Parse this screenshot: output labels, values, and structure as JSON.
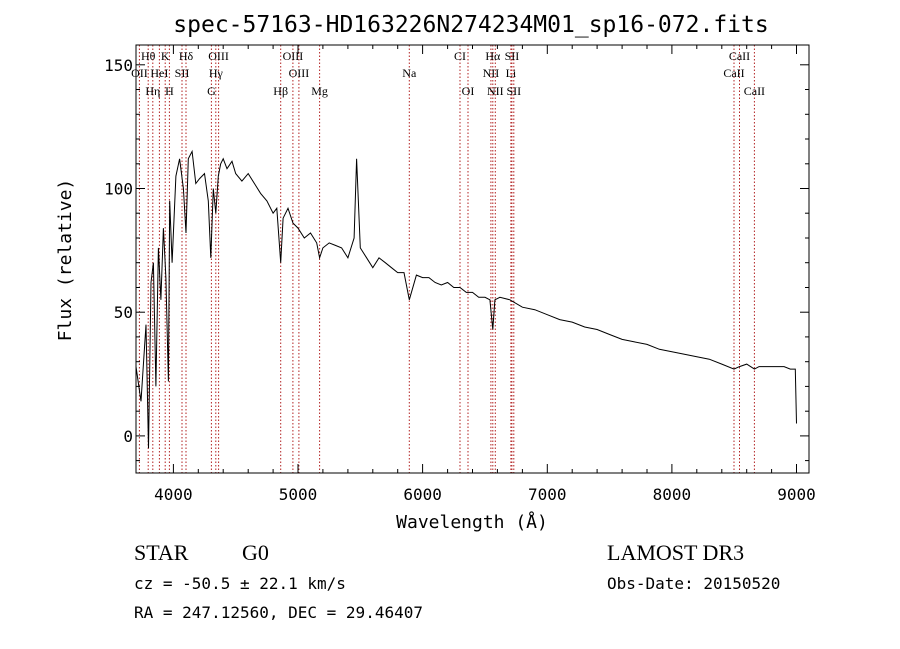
{
  "chart_data": {
    "type": "line",
    "title": "spec-57163-HD163226N274234M01_sp16-072.fits",
    "xlabel": "Wavelength (Å)",
    "ylabel": "Flux (relative)",
    "xlim": [
      3700,
      9100
    ],
    "ylim": [
      -15,
      158
    ],
    "xticks": [
      4000,
      5000,
      6000,
      7000,
      8000,
      9000
    ],
    "yticks": [
      0,
      50,
      100,
      150
    ],
    "xtick_labels": [
      "4000",
      "5000",
      "6000",
      "7000",
      "8000",
      "9000"
    ],
    "ytick_labels": [
      "0",
      "50",
      "100",
      "150"
    ],
    "grid": false,
    "series": [
      {
        "name": "spectrum",
        "x": [
          3700,
          3740,
          3780,
          3800,
          3820,
          3840,
          3860,
          3880,
          3900,
          3920,
          3940,
          3960,
          3970,
          3990,
          4020,
          4050,
          4080,
          4101,
          4120,
          4150,
          4180,
          4210,
          4250,
          4280,
          4300,
          4320,
          4340,
          4360,
          4380,
          4400,
          4430,
          4470,
          4500,
          4550,
          4600,
          4650,
          4700,
          4750,
          4800,
          4830,
          4861,
          4880,
          4920,
          4960,
          5000,
          5050,
          5100,
          5150,
          5173,
          5200,
          5250,
          5300,
          5350,
          5400,
          5450,
          5470,
          5500,
          5550,
          5600,
          5650,
          5700,
          5750,
          5800,
          5850,
          5893,
          5950,
          6000,
          6050,
          6100,
          6150,
          6200,
          6250,
          6300,
          6350,
          6400,
          6450,
          6500,
          6540,
          6563,
          6580,
          6620,
          6700,
          6800,
          6900,
          7000,
          7100,
          7200,
          7300,
          7400,
          7500,
          7600,
          7700,
          7800,
          7900,
          8000,
          8100,
          8200,
          8300,
          8400,
          8498,
          8542,
          8600,
          8662,
          8700,
          8800,
          8900,
          8950,
          8990,
          9000
        ],
        "y": [
          28,
          14,
          45,
          -5,
          62,
          70,
          20,
          76,
          55,
          84,
          64,
          22,
          95,
          70,
          105,
          112,
          100,
          82,
          112,
          115,
          102,
          104,
          106,
          95,
          72,
          100,
          90,
          105,
          110,
          112,
          108,
          111,
          106,
          103,
          106,
          102,
          98,
          95,
          90,
          92,
          70,
          88,
          92,
          86,
          84,
          80,
          82,
          78,
          72,
          76,
          78,
          77,
          76,
          72,
          80,
          112,
          76,
          72,
          68,
          72,
          70,
          68,
          66,
          66,
          55,
          65,
          64,
          64,
          62,
          61,
          62,
          60,
          60,
          58,
          58,
          56,
          56,
          55,
          43,
          55,
          56,
          55,
          52,
          51,
          49,
          47,
          46,
          44,
          43,
          41,
          39,
          38,
          37,
          35,
          34,
          33,
          32,
          31,
          29,
          27,
          28,
          29,
          27,
          28,
          28,
          28,
          27,
          27,
          5
        ]
      }
    ],
    "spectral_lines": [
      {
        "label": "Hθ",
        "wavelength": 3798,
        "row": 1
      },
      {
        "label": "K",
        "wavelength": 3934,
        "row": 1
      },
      {
        "label": "Hδ",
        "wavelength": 4101,
        "row": 1
      },
      {
        "label": "OIII",
        "wavelength": 4363,
        "row": 1
      },
      {
        "label": "OIII",
        "wavelength": 4959,
        "row": 1
      },
      {
        "label": "CI",
        "wavelength": 6300,
        "row": 1
      },
      {
        "label": "Hα",
        "wavelength": 6563,
        "row": 1
      },
      {
        "label": "SII",
        "wavelength": 6716,
        "row": 1
      },
      {
        "label": "CaII",
        "wavelength": 8542,
        "row": 1
      },
      {
        "label": "OII",
        "wavelength": 3727,
        "row": 2
      },
      {
        "label": "HeI",
        "wavelength": 3888,
        "row": 2
      },
      {
        "label": "SII",
        "wavelength": 4069,
        "row": 2
      },
      {
        "label": "Hγ",
        "wavelength": 4340,
        "row": 2
      },
      {
        "label": "OIII",
        "wavelength": 5007,
        "row": 2
      },
      {
        "label": "Na",
        "wavelength": 5893,
        "row": 2
      },
      {
        "label": "NII",
        "wavelength": 6548,
        "row": 2
      },
      {
        "label": "Li",
        "wavelength": 6708,
        "row": 2
      },
      {
        "label": "CaII",
        "wavelength": 8498,
        "row": 2
      },
      {
        "label": "Hη",
        "wavelength": 3835,
        "row": 3
      },
      {
        "label": "H",
        "wavelength": 3968,
        "row": 3
      },
      {
        "label": "G",
        "wavelength": 4305,
        "row": 3
      },
      {
        "label": "Hβ",
        "wavelength": 4861,
        "row": 3
      },
      {
        "label": "Mg",
        "wavelength": 5173,
        "row": 3
      },
      {
        "label": "OI",
        "wavelength": 6364,
        "row": 3
      },
      {
        "label": "NII",
        "wavelength": 6583,
        "row": 3
      },
      {
        "label": "SII",
        "wavelength": 6731,
        "row": 3
      },
      {
        "label": "CaII",
        "wavelength": 8662,
        "row": 3
      }
    ]
  },
  "info": {
    "object_type": "STAR",
    "subclass": "G0",
    "survey": "LAMOST DR3",
    "redshift": "cz = -50.5 ± 22.1 km/s",
    "obs_date": "Obs-Date: 20150520",
    "coords": "RA = 247.12560, DEC =  29.46407"
  },
  "colors": {
    "axis": "#000000",
    "spectrum": "#000000",
    "line_marker": "#b22222"
  }
}
